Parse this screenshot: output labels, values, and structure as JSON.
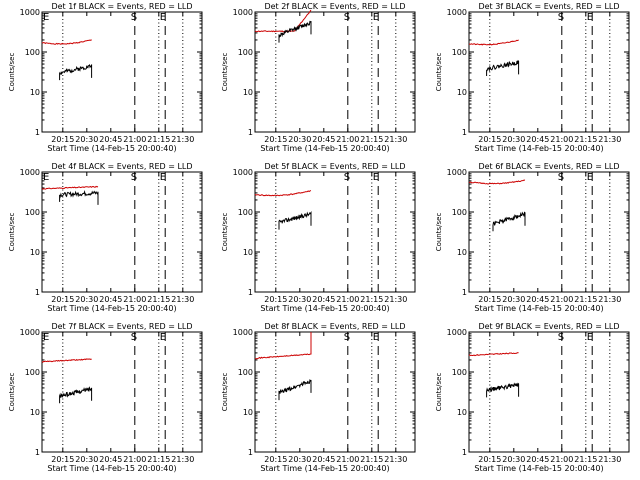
{
  "colors": {
    "events": "#000000",
    "lld": "#cc0000",
    "axis": "#000000"
  },
  "xtick_labels": [
    "20:15",
    "20:30",
    "20:45",
    "21:00",
    "21:15",
    "21:30"
  ],
  "ytick_labels": [
    "1",
    "10",
    "100",
    "1000"
  ],
  "xlabel": "Start Time (14-Feb-15 20:00:40)",
  "ylabel": "Counts/sec",
  "chart_data": [
    {
      "type": "line",
      "title": "Det 1f BLACK = Events, RED = LLD",
      "yscale": "log",
      "ylim": [
        1,
        1000
      ],
      "x_range": [
        "20:02",
        "21:42"
      ],
      "markers": [
        {
          "label": "E",
          "time": "20:02",
          "style": "dashed"
        },
        {
          "label": "",
          "time": "20:15",
          "style": "dotted"
        },
        {
          "label": "S",
          "time": "21:00",
          "style": "dashed"
        },
        {
          "label": "E",
          "time": "21:15",
          "style": "dotted"
        },
        {
          "label": "",
          "time": "21:19",
          "style": "dashed"
        },
        {
          "label": "",
          "time": "21:30",
          "style": "dotted"
        }
      ],
      "series": [
        {
          "name": "LLD",
          "time_range": [
            "20:02",
            "20:33"
          ],
          "y_start": 170,
          "y_end": 200,
          "shape": "dip"
        },
        {
          "name": "Events",
          "time_range": [
            "20:13",
            "20:33"
          ],
          "y_start": 30,
          "y_end": 45,
          "shape": "rise"
        }
      ]
    },
    {
      "type": "line",
      "title": "Det 2f BLACK = Events, RED = LLD",
      "yscale": "log",
      "ylim": [
        1,
        1000
      ],
      "x_range": [
        "20:02",
        "21:42"
      ],
      "markers": [
        {
          "label": "",
          "time": "20:15",
          "style": "dotted"
        },
        {
          "label": "S",
          "time": "21:00",
          "style": "dashed"
        },
        {
          "label": "E",
          "time": "21:15",
          "style": "dotted"
        },
        {
          "label": "",
          "time": "21:19",
          "style": "dashed"
        },
        {
          "label": "",
          "time": "21:30",
          "style": "dotted"
        }
      ],
      "series": [
        {
          "name": "LLD",
          "time_range": [
            "20:02",
            "20:37"
          ],
          "y_start": 330,
          "y_end": 1100,
          "shape": "flat-rise"
        },
        {
          "name": "Events",
          "time_range": [
            "20:17",
            "20:37"
          ],
          "y_start": 260,
          "y_end": 550,
          "shape": "rise"
        }
      ]
    },
    {
      "type": "line",
      "title": "Det 3f BLACK = Events, RED = LLD",
      "yscale": "log",
      "ylim": [
        1,
        1000
      ],
      "x_range": [
        "20:02",
        "21:42"
      ],
      "markers": [
        {
          "label": "",
          "time": "20:15",
          "style": "dotted"
        },
        {
          "label": "S",
          "time": "21:00",
          "style": "dashed"
        },
        {
          "label": "E",
          "time": "21:15",
          "style": "dotted"
        },
        {
          "label": "",
          "time": "21:19",
          "style": "dashed"
        },
        {
          "label": "",
          "time": "21:30",
          "style": "dotted"
        }
      ],
      "series": [
        {
          "name": "LLD",
          "time_range": [
            "20:02",
            "20:33"
          ],
          "y_start": 160,
          "y_end": 200,
          "shape": "dip"
        },
        {
          "name": "Events",
          "time_range": [
            "20:13",
            "20:33"
          ],
          "y_start": 38,
          "y_end": 55,
          "shape": "rise"
        }
      ]
    },
    {
      "type": "line",
      "title": "Det 4f BLACK = Events, RED = LLD",
      "yscale": "log",
      "ylim": [
        1,
        1000
      ],
      "x_range": [
        "20:02",
        "21:42"
      ],
      "markers": [
        {
          "label": "E",
          "time": "20:02",
          "style": "dashed"
        },
        {
          "label": "",
          "time": "20:15",
          "style": "dotted"
        },
        {
          "label": "S",
          "time": "21:00",
          "style": "dashed"
        },
        {
          "label": "E",
          "time": "21:15",
          "style": "dotted"
        },
        {
          "label": "",
          "time": "21:19",
          "style": "dashed"
        },
        {
          "label": "",
          "time": "21:30",
          "style": "dotted"
        }
      ],
      "series": [
        {
          "name": "LLD",
          "time_range": [
            "20:02",
            "20:37"
          ],
          "y_start": 380,
          "y_end": 430,
          "shape": "flat"
        },
        {
          "name": "Events",
          "time_range": [
            "20:13",
            "20:37"
          ],
          "y_start": 270,
          "y_end": 300,
          "shape": "flat"
        }
      ]
    },
    {
      "type": "line",
      "title": "Det 5f BLACK = Events, RED = LLD",
      "yscale": "log",
      "ylim": [
        1,
        1000
      ],
      "x_range": [
        "20:02",
        "21:42"
      ],
      "markers": [
        {
          "label": "",
          "time": "20:15",
          "style": "dotted"
        },
        {
          "label": "S",
          "time": "21:00",
          "style": "dashed"
        },
        {
          "label": "E",
          "time": "21:15",
          "style": "dotted"
        },
        {
          "label": "",
          "time": "21:19",
          "style": "dashed"
        },
        {
          "label": "",
          "time": "21:30",
          "style": "dotted"
        }
      ],
      "series": [
        {
          "name": "LLD",
          "time_range": [
            "20:02",
            "20:37"
          ],
          "y_start": 270,
          "y_end": 340,
          "shape": "dip"
        },
        {
          "name": "Events",
          "time_range": [
            "20:17",
            "20:37"
          ],
          "y_start": 55,
          "y_end": 90,
          "shape": "rise"
        }
      ]
    },
    {
      "type": "line",
      "title": "Det 6f BLACK = Events, RED = LLD",
      "yscale": "log",
      "ylim": [
        1,
        1000
      ],
      "x_range": [
        "20:02",
        "21:42"
      ],
      "markers": [
        {
          "label": "",
          "time": "20:15",
          "style": "dotted"
        },
        {
          "label": "S",
          "time": "21:00",
          "style": "dashed"
        },
        {
          "label": "E",
          "time": "21:15",
          "style": "dotted"
        },
        {
          "label": "",
          "time": "21:19",
          "style": "dashed"
        },
        {
          "label": "",
          "time": "21:30",
          "style": "dotted"
        }
      ],
      "series": [
        {
          "name": "LLD",
          "time_range": [
            "20:02",
            "20:37"
          ],
          "y_start": 560,
          "y_end": 620,
          "shape": "dip"
        },
        {
          "name": "Events",
          "time_range": [
            "20:17",
            "20:37"
          ],
          "y_start": 50,
          "y_end": 90,
          "shape": "rise"
        }
      ]
    },
    {
      "type": "line",
      "title": "Det 7f BLACK = Events, RED = LLD",
      "yscale": "log",
      "ylim": [
        1,
        1000
      ],
      "x_range": [
        "20:02",
        "21:42"
      ],
      "markers": [
        {
          "label": "E",
          "time": "20:02",
          "style": "dashed"
        },
        {
          "label": "",
          "time": "20:15",
          "style": "dotted"
        },
        {
          "label": "S",
          "time": "21:00",
          "style": "dashed"
        },
        {
          "label": "E",
          "time": "21:15",
          "style": "dotted"
        },
        {
          "label": "",
          "time": "21:19",
          "style": "dashed"
        },
        {
          "label": "",
          "time": "21:30",
          "style": "dotted"
        }
      ],
      "series": [
        {
          "name": "LLD",
          "time_range": [
            "20:02",
            "20:33"
          ],
          "y_start": 180,
          "y_end": 210,
          "shape": "flat"
        },
        {
          "name": "Events",
          "time_range": [
            "20:13",
            "20:33"
          ],
          "y_start": 25,
          "y_end": 38,
          "shape": "rise"
        }
      ]
    },
    {
      "type": "line",
      "title": "Det 8f BLACK = Events, RED = LLD",
      "yscale": "log",
      "ylim": [
        1,
        1000
      ],
      "x_range": [
        "20:02",
        "21:42"
      ],
      "markers": [
        {
          "label": "",
          "time": "20:15",
          "style": "dotted"
        },
        {
          "label": "S",
          "time": "21:00",
          "style": "dashed"
        },
        {
          "label": "E",
          "time": "21:15",
          "style": "dotted"
        },
        {
          "label": "",
          "time": "21:19",
          "style": "dashed"
        },
        {
          "label": "",
          "time": "21:30",
          "style": "dotted"
        }
      ],
      "series": [
        {
          "name": "LLD",
          "time_range": [
            "20:02",
            "20:37"
          ],
          "y_start": 220,
          "y_end": 280,
          "shape": "spike-end",
          "spike_to": 1000
        },
        {
          "name": "Events",
          "time_range": [
            "20:17",
            "20:37"
          ],
          "y_start": 30,
          "y_end": 60,
          "shape": "rise"
        }
      ]
    },
    {
      "type": "line",
      "title": "Det 9f BLACK = Events, RED = LLD",
      "yscale": "log",
      "ylim": [
        1,
        1000
      ],
      "x_range": [
        "20:02",
        "21:42"
      ],
      "markers": [
        {
          "label": "",
          "time": "20:15",
          "style": "dotted"
        },
        {
          "label": "S",
          "time": "21:00",
          "style": "dashed"
        },
        {
          "label": "E",
          "time": "21:15",
          "style": "dotted"
        },
        {
          "label": "",
          "time": "21:19",
          "style": "dashed"
        },
        {
          "label": "",
          "time": "21:30",
          "style": "dotted"
        }
      ],
      "series": [
        {
          "name": "LLD",
          "time_range": [
            "20:02",
            "20:33"
          ],
          "y_start": 260,
          "y_end": 300,
          "shape": "flat"
        },
        {
          "name": "Events",
          "time_range": [
            "20:13",
            "20:33"
          ],
          "y_start": 35,
          "y_end": 48,
          "shape": "rise"
        }
      ]
    }
  ]
}
